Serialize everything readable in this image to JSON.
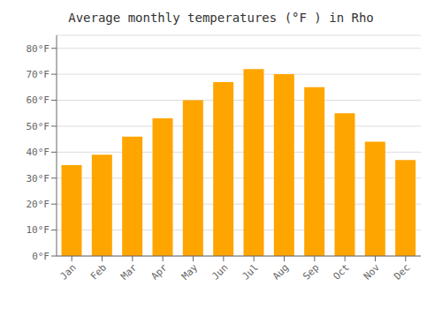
{
  "chart_data": {
    "type": "bar",
    "title": "Average monthly temperatures (°F ) in Rho",
    "categories": [
      "Jan",
      "Feb",
      "Mar",
      "Apr",
      "May",
      "Jun",
      "Jul",
      "Aug",
      "Sep",
      "Oct",
      "Nov",
      "Dec"
    ],
    "values": [
      35,
      39,
      46,
      53,
      60,
      67,
      72,
      70,
      65,
      55,
      44,
      37
    ],
    "color": "#FFA500",
    "ylim": [
      0,
      85
    ],
    "yticks": [
      {
        "value": 0,
        "label": "0°F"
      },
      {
        "value": 10,
        "label": "10°F"
      },
      {
        "value": 20,
        "label": "20°F"
      },
      {
        "value": 30,
        "label": "30°F"
      },
      {
        "value": 40,
        "label": "40°F"
      },
      {
        "value": 50,
        "label": "50°F"
      },
      {
        "value": 60,
        "label": "60°F"
      },
      {
        "value": 70,
        "label": "70°F"
      },
      {
        "value": 80,
        "label": "80°F"
      }
    ],
    "grid": true
  }
}
